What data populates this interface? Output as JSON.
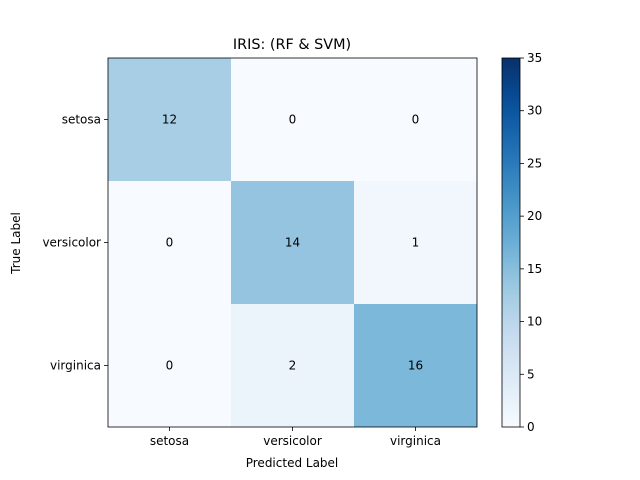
{
  "chart_data": {
    "type": "heatmap",
    "title": "IRIS: (RF & SVM)",
    "xlabel": "Predicted Label",
    "ylabel": "True Label",
    "x_categories": [
      "setosa",
      "versicolor",
      "virginica"
    ],
    "y_categories": [
      "setosa",
      "versicolor",
      "virginica"
    ],
    "values": [
      [
        12,
        0,
        0
      ],
      [
        0,
        14,
        1
      ],
      [
        0,
        2,
        16
      ]
    ],
    "colorbar": {
      "range": [
        0,
        35
      ],
      "ticks": [
        "0",
        "5",
        "10",
        "15",
        "20",
        "25",
        "30",
        "35"
      ],
      "colormap": "Blues"
    }
  }
}
